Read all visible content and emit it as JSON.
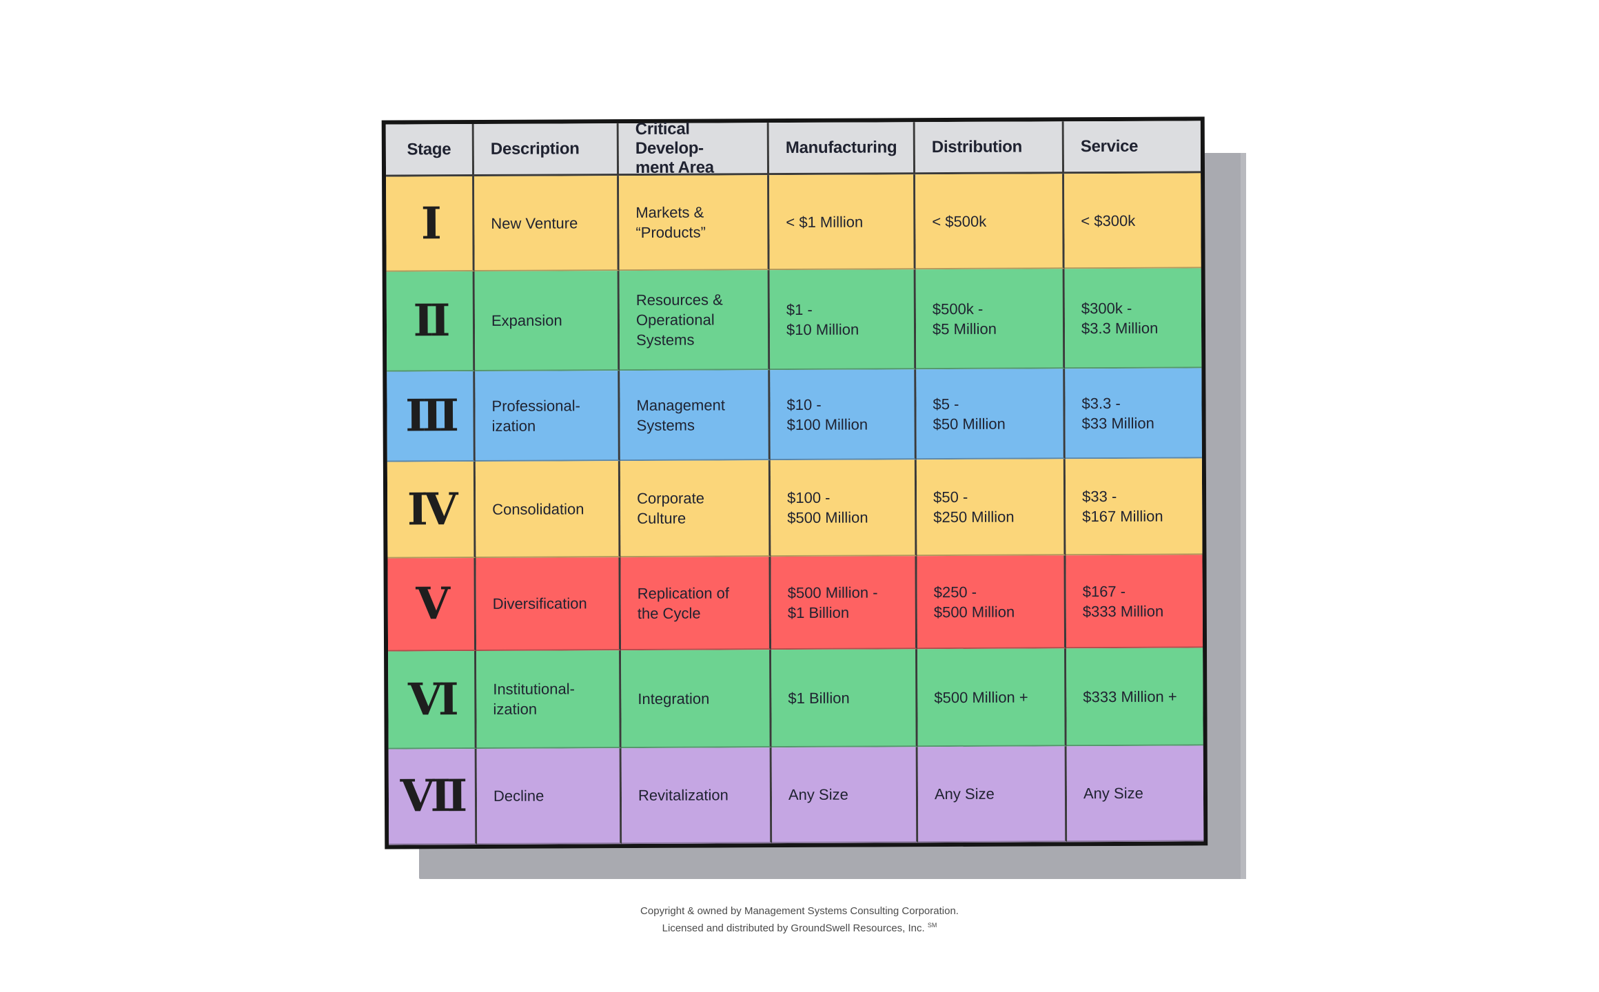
{
  "headers": {
    "stage": "Stage",
    "description": "Description",
    "critical": "Critical Develop-\nment Area",
    "manufacturing": "Manufacturing",
    "distribution": "Distribution",
    "service": "Service"
  },
  "rows": [
    {
      "stage": "I",
      "description": "New Venture",
      "critical": "Markets &\n“Products”",
      "manufacturing": "< $1 Million",
      "distribution": "< $500k",
      "service": "< $300k",
      "color": "#fbd67a"
    },
    {
      "stage": "II",
      "description": "Expansion",
      "critical": "Resources &\nOperational\nSystems",
      "manufacturing": "$1 -\n$10 Million",
      "distribution": "$500k -\n$5 Million",
      "service": "$300k -\n$3.3 Million",
      "color": "#6dd391"
    },
    {
      "stage": "III",
      "description": "Professional-\nization",
      "critical": "Management\nSystems",
      "manufacturing": "$10 -\n$100 Million",
      "distribution": "$5 -\n$50 Million",
      "service": "$3.3 -\n$33 Million",
      "color": "#78bbef"
    },
    {
      "stage": "IV",
      "description": "Consolidation",
      "critical": "Corporate\nCulture",
      "manufacturing": "$100 -\n$500 Million",
      "distribution": "$50 -\n$250 Million",
      "service": "$33 -\n$167 Million",
      "color": "#fbd67a"
    },
    {
      "stage": "V",
      "description": "Diversification",
      "critical": "Replication of\nthe Cycle",
      "manufacturing": "$500 Million -\n$1 Billion",
      "distribution": "$250 -\n$500 Million",
      "service": "$167 -\n$333 Million",
      "color": "#fe6262"
    },
    {
      "stage": "VI",
      "description": "Institutional-\nization",
      "critical": "Integration",
      "manufacturing": "$1 Billion",
      "distribution": "$500 Million +",
      "service": "$333 Million +",
      "color": "#6dd391"
    },
    {
      "stage": "VII",
      "description": "Decline",
      "critical": "Revitalization",
      "manufacturing": "Any Size",
      "distribution": "Any Size",
      "service": "Any Size",
      "color": "#c5a6e3"
    }
  ],
  "footer": {
    "line1": "Copyright & owned by Management Systems Consulting Corporation.",
    "line2": "Licensed and distributed by GroundSwell Resources, Inc.",
    "mark": "SM"
  }
}
